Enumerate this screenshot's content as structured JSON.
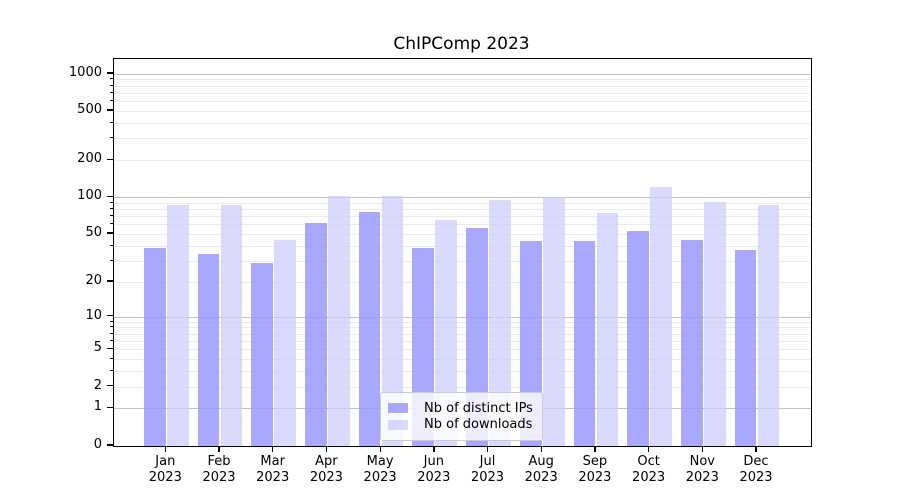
{
  "title": "ChIPComp 2023",
  "colors": {
    "ips_bar": "rgba(153,153,255,0.85)",
    "downloads_bar": "rgba(204,204,255,0.72)",
    "major_grid": "#c2c2c2",
    "minor_grid": "#ebebeb",
    "axis": "#000000",
    "legend_border": "#cccccc",
    "legend_bg": "rgba(255,255,255,0.8)"
  },
  "legend": {
    "items": [
      {
        "label": "Nb of distinct IPs",
        "series": "ips"
      },
      {
        "label": "Nb of downloads",
        "series": "downloads"
      }
    ]
  },
  "y_axis": {
    "tick_labels": [
      "0",
      "1",
      "2",
      "5",
      "10",
      "20",
      "50",
      "100",
      "200",
      "500",
      "1000"
    ]
  },
  "x_axis": {
    "year": "2023",
    "months": [
      "Jan",
      "Feb",
      "Mar",
      "Apr",
      "May",
      "Jun",
      "Jul",
      "Aug",
      "Sep",
      "Oct",
      "Nov",
      "Dec"
    ]
  },
  "chart_data": {
    "type": "bar",
    "title": "ChIPComp 2023",
    "categories": [
      "Jan 2023",
      "Feb 2023",
      "Mar 2023",
      "Apr 2023",
      "May 2023",
      "Jun 2023",
      "Jul 2023",
      "Aug 2023",
      "Sep 2023",
      "Oct 2023",
      "Nov 2023",
      "Dec 2023"
    ],
    "series": [
      {
        "name": "Nb of distinct IPs",
        "color": "rgba(153,153,255,0.85)",
        "values": [
          38,
          34,
          29,
          61,
          75,
          38,
          56,
          44,
          44,
          53,
          45,
          37
        ]
      },
      {
        "name": "Nb of downloads",
        "color": "rgba(204,204,255,0.72)",
        "values": [
          87,
          86,
          45,
          102,
          102,
          65,
          94,
          100,
          74,
          121,
          91,
          86
        ]
      }
    ],
    "yscale": "symlog: y proportional to log10(1+value)",
    "y_ticks": [
      0,
      1,
      2,
      5,
      10,
      20,
      50,
      100,
      200,
      500,
      1000
    ],
    "minor_grid_ticks": [
      2,
      3,
      4,
      5,
      6,
      7,
      8,
      9,
      20,
      30,
      40,
      50,
      60,
      70,
      80,
      90,
      200,
      300,
      400,
      500,
      600,
      700,
      800,
      900
    ],
    "major_grid_ticks": [
      1,
      10,
      100,
      1000
    ],
    "ylim": [
      0,
      1330
    ],
    "xlabel": "",
    "ylabel": "",
    "grid": "major+minor horizontal",
    "legend_position": "lower center, inside axes"
  }
}
